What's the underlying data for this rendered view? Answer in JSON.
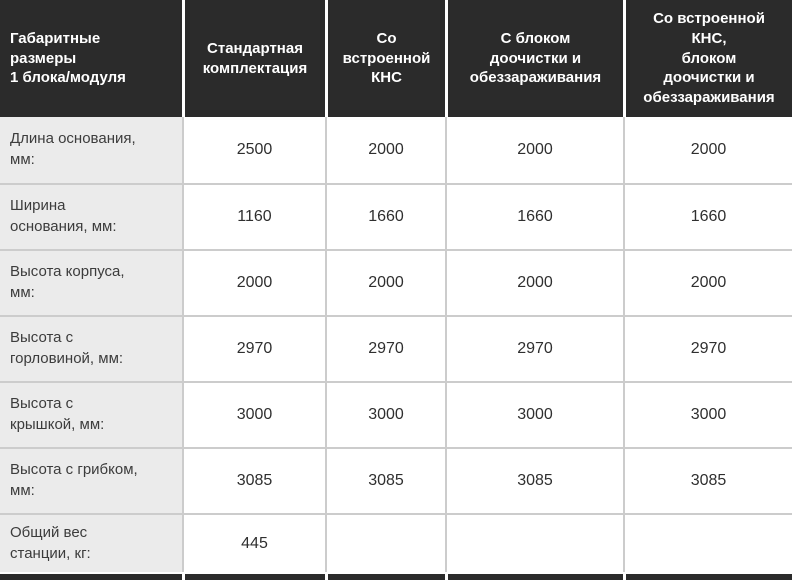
{
  "colors": {
    "header_bg": "#2b2b2b",
    "header_text": "#ffffff",
    "label_column_bg": "#ebebeb",
    "body_text": "#333333",
    "grid_border": "#cccccc"
  },
  "table": {
    "header": [
      "Габаритные\nразмеры\n1 блока/модуля",
      "Стандартная\nкомплектация",
      "Со\nвстроенной\nКНС",
      "С блоком\nдоочистки и\nобеззараживания",
      "Со встроенной\nКНС,\nблоком\nдоочистки и\nобеззараживания"
    ],
    "rows": [
      {
        "label": "Длина основания,\nмм:",
        "values": [
          "2500",
          "2000",
          "2000",
          "2000"
        ]
      },
      {
        "label": "Ширина\nоснования, мм:",
        "values": [
          "1160",
          "1660",
          "1660",
          "1660"
        ]
      },
      {
        "label": "Высота корпуса,\nмм:",
        "values": [
          "2000",
          "2000",
          "2000",
          "2000"
        ]
      },
      {
        "label": "Высота с\nгорловиной, мм:",
        "values": [
          "2970",
          "2970",
          "2970",
          "2970"
        ]
      },
      {
        "label": "Высота с\nкрышкой, мм:",
        "values": [
          "3000",
          "3000",
          "3000",
          "3000"
        ]
      },
      {
        "label": "Высота с грибком,\nмм:",
        "values": [
          "3085",
          "3085",
          "3085",
          "3085"
        ]
      },
      {
        "label": "Общий вес\nстанции, кг:",
        "values": [
          "445",
          "",
          "",
          ""
        ]
      }
    ]
  },
  "chart_data": {
    "type": "table",
    "title": "Габаритные размеры 1 блока/модуля",
    "columns": [
      "Габаритные размеры 1 блока/модуля",
      "Стандартная комплектация",
      "Со встроенной КНС",
      "С блоком доочистки и обеззараживания",
      "Со встроенной КНС, блоком доочистки и обеззараживания"
    ],
    "series": [
      {
        "name": "Длина основания, мм",
        "values": [
          2500,
          2000,
          2000,
          2000
        ]
      },
      {
        "name": "Ширина основания, мм",
        "values": [
          1160,
          1660,
          1660,
          1660
        ]
      },
      {
        "name": "Высота корпуса, мм",
        "values": [
          2000,
          2000,
          2000,
          2000
        ]
      },
      {
        "name": "Высота с горловиной, мм",
        "values": [
          2970,
          2970,
          2970,
          2970
        ]
      },
      {
        "name": "Высота с крышкой, мм",
        "values": [
          3000,
          3000,
          3000,
          3000
        ]
      },
      {
        "name": "Высота с грибком, мм",
        "values": [
          3085,
          3085,
          3085,
          3085
        ]
      },
      {
        "name": "Общий вес станции, кг",
        "values": [
          445,
          null,
          null,
          null
        ]
      }
    ]
  }
}
